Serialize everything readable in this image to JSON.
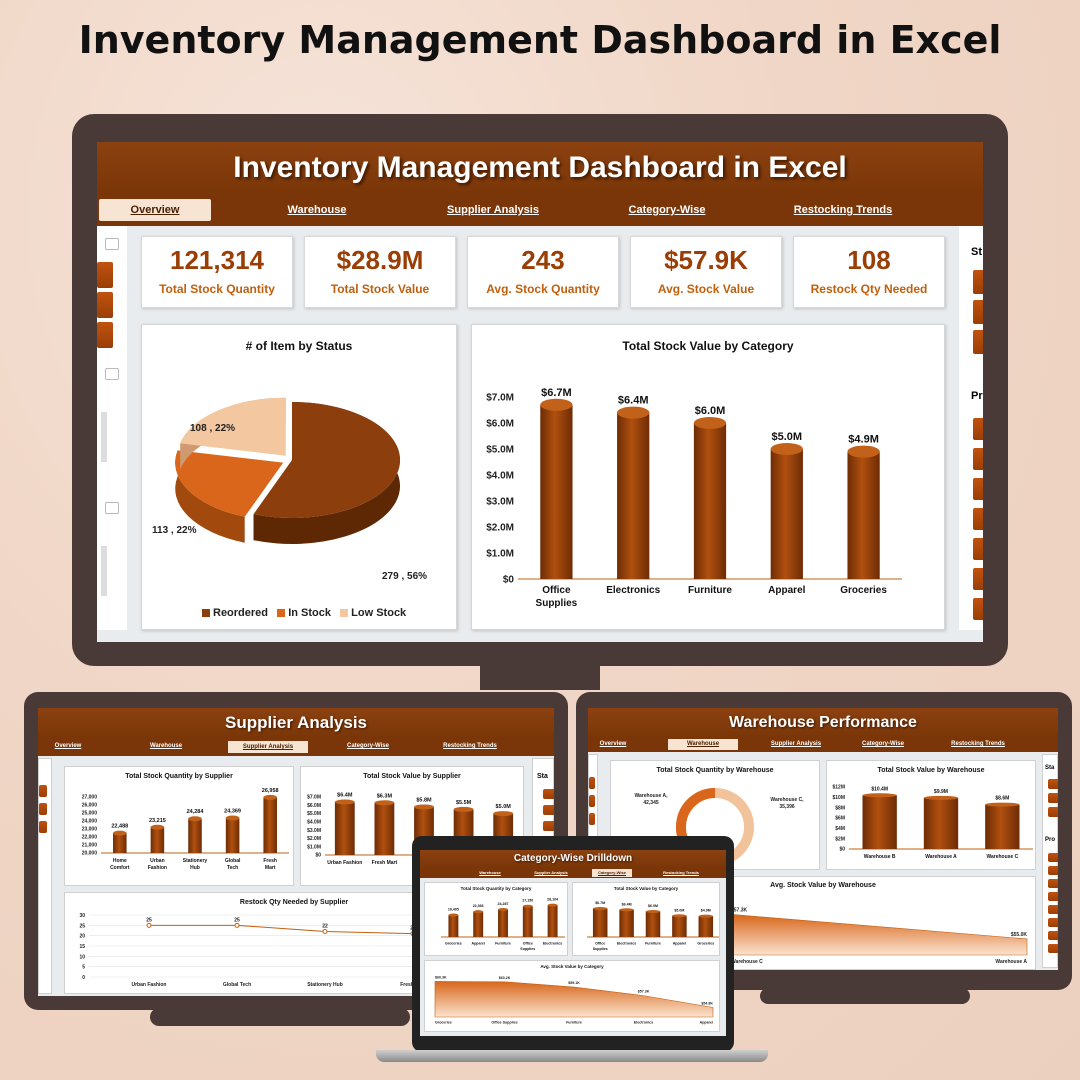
{
  "page_title": "Inventory Management Dashboard in Excel",
  "main": {
    "title": "Inventory Management Dashboard in Excel",
    "tabs": [
      "Overview",
      "Warehouse",
      "Supplier Analysis",
      "Category-Wise",
      "Restocking Trends"
    ],
    "kpis": [
      {
        "value": "121,314",
        "label": "Total Stock Quantity"
      },
      {
        "value": "$28.9M",
        "label": "Total Stock Value"
      },
      {
        "value": "243",
        "label": "Avg. Stock Quantity"
      },
      {
        "value": "$57.9K",
        "label": "Avg.  Stock Value"
      },
      {
        "value": "108",
        "label": "Restock Qty Needed"
      }
    ],
    "right_slicers": {
      "heading_1": "St",
      "heading_2": "Pr"
    },
    "colors": {
      "dark": "#7a3608",
      "accent": "#c0600e",
      "mid": "#e07a22",
      "light": "#f3c7a0"
    }
  },
  "chart_data": [
    {
      "type": "pie",
      "title": "# of Item by Status",
      "slices": [
        {
          "name": "Reordered",
          "value": 279,
          "label": "279 , 56%",
          "color": "#8c3e0c"
        },
        {
          "name": "In Stock",
          "value": 113,
          "label": "113 , 22%",
          "color": "#d9661a"
        },
        {
          "name": "Low Stock",
          "value": 108,
          "label": "108 , 22%",
          "color": "#f3c7a0"
        }
      ],
      "legend_position": "bottom"
    },
    {
      "type": "bar",
      "title": "Total Stock Value by Category",
      "categories": [
        "Office Supplies",
        "Electronics",
        "Furniture",
        "Apparel",
        "Groceries"
      ],
      "values": [
        6.7,
        6.4,
        6.0,
        5.0,
        4.9
      ],
      "data_labels": [
        "$6.7M",
        "$6.4M",
        "$6.0M",
        "$5.0M",
        "$4.9M"
      ],
      "yticks": [
        "$0",
        "$1.0M",
        "$2.0M",
        "$3.0M",
        "$4.0M",
        "$5.0M",
        "$6.0M",
        "$7.0M"
      ],
      "ylim": [
        0,
        7
      ]
    },
    {
      "type": "bar",
      "title": "Total Stock Quantity by Supplier",
      "categories": [
        "Home Comfort",
        "Urban Fashion",
        "Stationery Hub",
        "Global Tech",
        "Fresh Mart"
      ],
      "values": [
        22488,
        23215,
        24284,
        24369,
        26958
      ],
      "data_labels": [
        "22,488",
        "23,215",
        "24,284",
        "24,369",
        "26,958"
      ],
      "yticks": [
        "20,000",
        "21,000",
        "22,000",
        "23,000",
        "24,000",
        "25,000",
        "26,000",
        "27,000"
      ],
      "ylim": [
        20000,
        27000
      ]
    },
    {
      "type": "bar",
      "title": "Total Stock Value by Supplier",
      "categories": [
        "Urban Fashion",
        "Fresh Mart",
        "",
        "",
        ""
      ],
      "values": [
        6.4,
        6.3,
        5.8,
        5.5,
        5.0
      ],
      "data_labels": [
        "$6.4M",
        "$6.3M",
        "$5.8M",
        "$5.5M",
        "$5.0M"
      ],
      "yticks": [
        "$0",
        "$1.0M",
        "$2.0M",
        "$3.0M",
        "$4.0M",
        "$5.0M",
        "$6.0M",
        "$7.0M"
      ],
      "ylim": [
        0,
        7
      ]
    },
    {
      "type": "line",
      "title": "Restock Qty Needed by Supplier",
      "categories": [
        "Urban Fashion",
        "Global Tech",
        "Stationery Hub",
        "Fresh Mart"
      ],
      "values": [
        25,
        25,
        22,
        21
      ],
      "yticks": [
        "0",
        "5",
        "10",
        "15",
        "20",
        "25",
        "30"
      ],
      "ylim": [
        0,
        30
      ]
    },
    {
      "type": "pie",
      "title": "Total Stock Quantity by Warehouse",
      "slices": [
        {
          "name": "Warehouse A",
          "value": 42345,
          "label": "Warehouse A, 42,345"
        },
        {
          "name": "Warehouse C",
          "value": 35396,
          "label": "Warehouse C, 35,396"
        }
      ]
    },
    {
      "type": "bar",
      "title": "Total Stock Value by Warehouse",
      "categories": [
        "Warehouse B",
        "Warehouse A",
        "Warehouse C"
      ],
      "values": [
        10.4,
        9.9,
        8.6
      ],
      "data_labels": [
        "$10.4M",
        "$9.9M",
        "$8.6M"
      ],
      "yticks": [
        "$0",
        "$2M",
        "$4M",
        "$6M",
        "$8M",
        "$10M",
        "$12M"
      ],
      "ylim": [
        0,
        12
      ]
    },
    {
      "type": "area",
      "title": "Avg.  Stock Value by Warehouse",
      "categories": [
        "Warehouse C",
        "Warehouse A"
      ],
      "values": [
        57.3,
        55.0
      ],
      "data_labels": [
        "$57.3K",
        "$55.0K"
      ]
    },
    {
      "type": "bar",
      "title": "Total Stock Quantity by Category",
      "categories": [
        "Groceries",
        "Apparel",
        "Furniture",
        "Office Supplies",
        "Electronics"
      ],
      "values": [
        19405,
        22366,
        24287,
        27150,
        28104
      ],
      "data_labels": [
        "19,405",
        "22,366",
        "24,287",
        "27,150",
        "28,104"
      ],
      "ylim": [
        0,
        30000
      ]
    },
    {
      "type": "bar",
      "title": "Total Stock Value by Category",
      "categories": [
        "Office Supplies",
        "Electronics",
        "Furniture",
        "Apparel",
        "Groceries"
      ],
      "values": [
        6.7,
        6.4,
        6.0,
        5.0,
        4.9
      ],
      "data_labels": [
        "$6.7M",
        "$6.4M",
        "$6.0M",
        "$5.0M",
        "$4.9M"
      ],
      "ylim": [
        0,
        8
      ]
    },
    {
      "type": "area",
      "title": "Avg. Stock Value by Category",
      "categories": [
        "Groceries",
        "Office Supplies",
        "Furniture",
        "Electronics",
        "Apparel"
      ],
      "values": [
        60.3,
        60.2,
        59.1,
        57.3,
        54.8
      ],
      "data_labels": [
        "$60.3K",
        "$60.2K",
        "$59.1K",
        "$57.3K",
        "$54.8K"
      ]
    }
  ],
  "supplier_screen": {
    "title": "Supplier Analysis",
    "tabs": [
      "Overview",
      "Warehouse",
      "Supplier Analysis",
      "Category-Wise",
      "Restocking Trends"
    ],
    "right_heading": "Sta"
  },
  "warehouse_screen": {
    "title": "Warehouse Performance",
    "tabs": [
      "Overview",
      "Warehouse",
      "Supplier Analysis",
      "Category-Wise",
      "Restocking Trends"
    ],
    "right_heading_1": "Sta",
    "right_heading_2": "Pro"
  },
  "category_screen": {
    "title": "Category-Wise Drilldown",
    "tabs": [
      "Warehouse",
      "Supplier Analysis",
      "Category-Wise",
      "Restocking Trends"
    ]
  }
}
